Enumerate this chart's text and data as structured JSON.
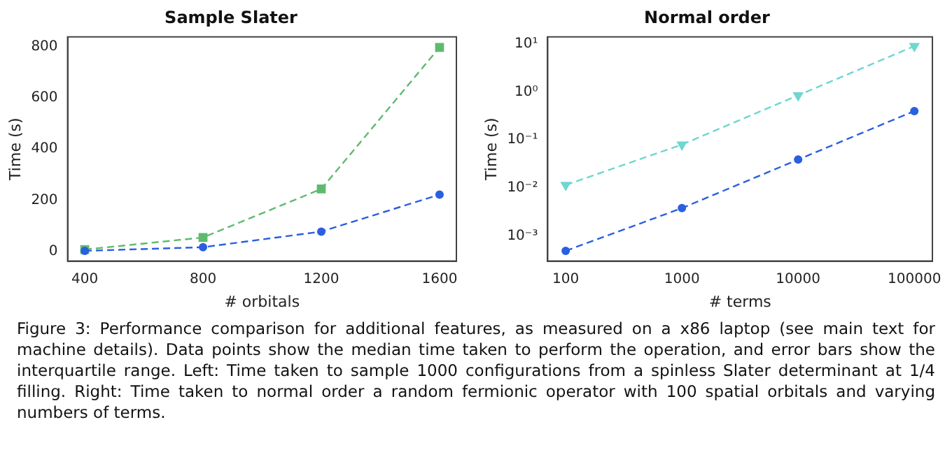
{
  "chart_data": [
    {
      "type": "line",
      "title": "Sample Slater",
      "xlabel": "# orbitals",
      "ylabel": "Time (s)",
      "x": [
        400,
        800,
        1200,
        1600
      ],
      "series": [
        {
          "color": "#5fba6f",
          "values": [
            8,
            55,
            244,
            796
          ],
          "marker": "square"
        },
        {
          "color": "#2a5fe0",
          "values": [
            3,
            17,
            78,
            222
          ],
          "marker": "circle"
        }
      ],
      "xlim": [
        342,
        1657
      ],
      "xticks": [
        400,
        800,
        1200,
        1600
      ],
      "ylim": [
        -37,
        837
      ],
      "yticks": [
        0,
        200,
        400,
        600,
        800
      ],
      "grid": false,
      "legend": false,
      "line_style": "dashed",
      "annotations": [
        "Figure 3: Performance comparison for additional features, as measured on a x86 laptop (see main text for machine details). Data points show the median time taken to perform the operation, and error bars show the interquartile range. Left: Time taken to sample 1000 configurations from a spinless Slater determinant at 1/4 filling. Right: Time taken to normal order a random fermionic operator with 100 spatial orbitals and varying numbers of terms."
      ]
    },
    {
      "type": "line",
      "title": "Normal order",
      "xlabel": "# terms",
      "ylabel": "Time (s)",
      "x": [
        100,
        1000,
        10000,
        100000
      ],
      "series": [
        {
          "color": "#6fd6d0",
          "values": [
            0.0115,
            0.08,
            0.85,
            9
          ],
          "marker": "triangle"
        },
        {
          "color": "#2a5fe0",
          "values": [
            0.00049,
            0.0038,
            0.039,
            0.4
          ],
          "marker": "circle"
        }
      ],
      "log": "xy",
      "xlim": [
        70,
        143000
      ],
      "xticks": [
        100,
        1000,
        10000,
        100000
      ],
      "ylim": [
        0.0003,
        14
      ],
      "yticks": [
        {
          "value": 0.001,
          "label": "10⁻³"
        },
        {
          "value": 0.01,
          "label": "10⁻²"
        },
        {
          "value": 0.1,
          "label": "10⁻¹"
        },
        {
          "value": 1,
          "label": "10⁰"
        },
        {
          "value": 10,
          "label": "10¹"
        }
      ],
      "grid": false,
      "legend": false,
      "line_style": "dashed"
    }
  ]
}
